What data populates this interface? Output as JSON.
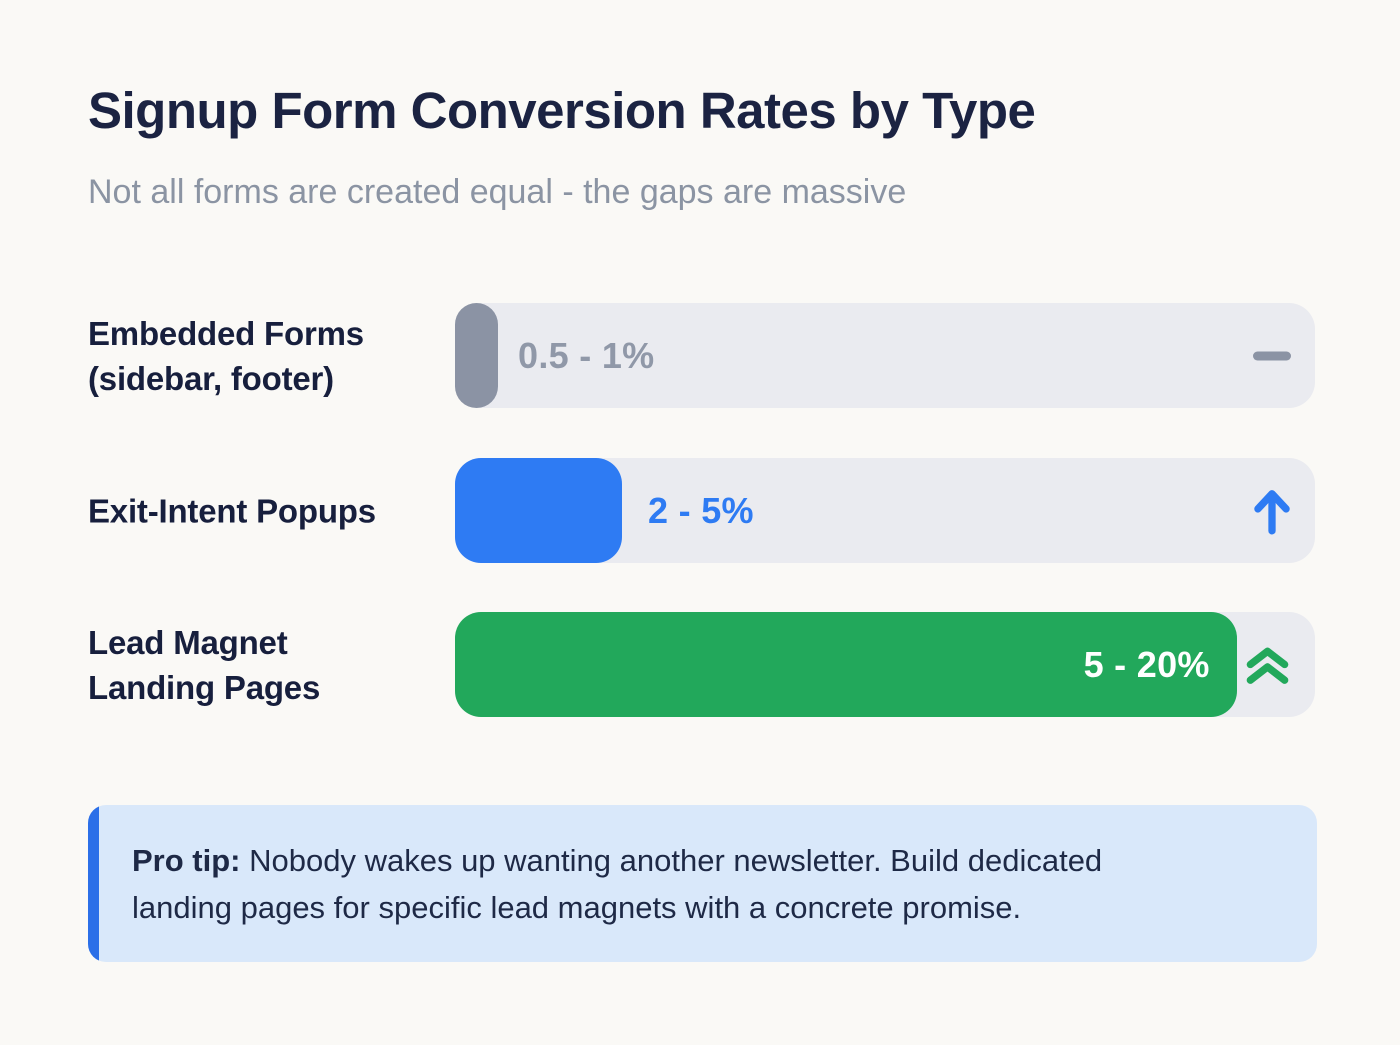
{
  "header": {
    "title": "Signup Form Conversion Rates by Type",
    "subtitle": "Not all forms are created equal - the gaps are massive"
  },
  "chart_data": {
    "type": "bar",
    "orientation": "horizontal",
    "title": "Signup Form Conversion Rates by Type",
    "subtitle": "Not all forms are created equal - the gaps are massive",
    "categories": [
      "Embedded Forms (sidebar, footer)",
      "Exit-Intent Popups",
      "Lead Magnet Landing Pages"
    ],
    "xlim": [
      0,
      22
    ],
    "grid": false,
    "legend": false,
    "track_color": "#eaebf0",
    "values": [
      {
        "label_display": "Embedded Forms\n(sidebar, footer)",
        "range_pct": [
          0.5,
          1
        ],
        "value_label": "0.5 - 1%",
        "fill_pct_of_track": 5,
        "bar_color": "#8b93a4",
        "value_color": "#9098a8",
        "trend": "flat",
        "trend_icon": "dash"
      },
      {
        "label_display": "Exit-Intent Popups",
        "range_pct": [
          2,
          5
        ],
        "value_label": "2 - 5%",
        "fill_pct_of_track": 19.4,
        "bar_color": "#2e7bf3",
        "value_color": "#2e7bf3",
        "trend": "up",
        "trend_icon": "arrow-up"
      },
      {
        "label_display": "Lead Magnet\nLanding Pages",
        "range_pct": [
          5,
          20
        ],
        "value_label": "5 - 20%",
        "fill_pct_of_track": 90.9,
        "bar_color": "#22a85b",
        "value_color": "#ffffff",
        "trend": "strong-up",
        "trend_icon": "chevrons-up"
      }
    ]
  },
  "protip": {
    "label": "Pro tip:",
    "text": "Nobody wakes up wanting another newsletter. Build dedicated\nlanding pages for specific lead magnets with a concrete promise.",
    "background": "#d9e8fa",
    "accent_color": "#2b6fe8",
    "text_color": "#1e2946"
  },
  "colors": {
    "page_background": "#faf9f6",
    "title": "#1b2342",
    "subtitle": "#8b94a3",
    "label": "#171f3d"
  }
}
